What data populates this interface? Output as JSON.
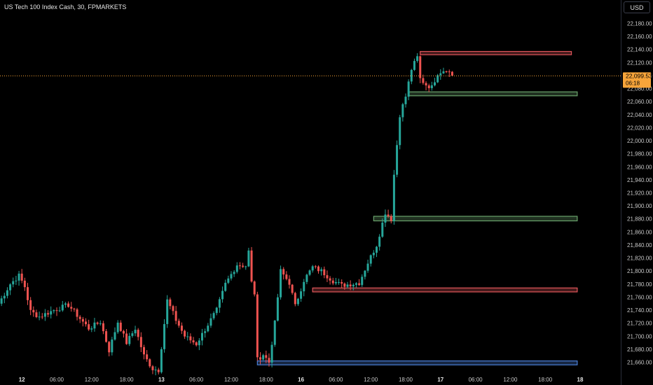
{
  "header": {
    "title": "US Tech 100 Index Cash, 30, FPMARKETS",
    "currency": "USD"
  },
  "colors": {
    "up": "#26a69a",
    "down": "#ef5350",
    "price_line": "#f7a43a",
    "zone_green": "#6aa36c",
    "zone_red": "#e0565b",
    "zone_blue": "#4a7fd6",
    "background": "#000000"
  },
  "price_label": {
    "price": "22,099.53",
    "countdown": "06:18"
  },
  "chart_data": {
    "type": "candlestick",
    "title": "US Tech 100 Index Cash, 30, FPMARKETS",
    "ylim": [
      21640,
      22200
    ],
    "current_price": 22099.53,
    "y_ticks": [
      "22,180.00",
      "22,160.00",
      "22,140.00",
      "22,120.00",
      "22,100.00",
      "22,080.00",
      "22,060.00",
      "22,040.00",
      "22,020.00",
      "22,000.00",
      "21,980.00",
      "21,960.00",
      "21,940.00",
      "21,920.00",
      "21,900.00",
      "21,880.00",
      "21,860.00",
      "21,840.00",
      "21,820.00",
      "21,800.00",
      "21,780.00",
      "21,760.00",
      "21,740.00",
      "21,720.00",
      "21,700.00",
      "21,680.00",
      "21,660.00"
    ],
    "x_ticks": [
      {
        "label": "12",
        "i": 8,
        "bold": true
      },
      {
        "label": "06:00",
        "i": 20
      },
      {
        "label": "12:00",
        "i": 32
      },
      {
        "label": "18:00",
        "i": 44
      },
      {
        "label": "13",
        "i": 56,
        "bold": true
      },
      {
        "label": "06:00",
        "i": 68
      },
      {
        "label": "12:00",
        "i": 80
      },
      {
        "label": "18:00",
        "i": 92
      },
      {
        "label": "16",
        "i": 104,
        "bold": true
      },
      {
        "label": "06:00",
        "i": 116
      },
      {
        "label": "12:00",
        "i": 128
      },
      {
        "label": "18:00",
        "i": 140
      },
      {
        "label": "17",
        "i": 152,
        "bold": true
      },
      {
        "label": "06:00",
        "i": 164
      },
      {
        "label": "12:00",
        "i": 176
      },
      {
        "label": "18:00",
        "i": 188
      },
      {
        "label": "18",
        "i": 200,
        "bold": true
      }
    ],
    "anchors": [
      [
        0,
        21750
      ],
      [
        4,
        21780
      ],
      [
        7,
        21793
      ],
      [
        9,
        21776
      ],
      [
        11,
        21738
      ],
      [
        14,
        21730
      ],
      [
        19,
        21740
      ],
      [
        24,
        21748
      ],
      [
        28,
        21727
      ],
      [
        31,
        21712
      ],
      [
        35,
        21722
      ],
      [
        38,
        21678
      ],
      [
        41,
        21722
      ],
      [
        44,
        21690
      ],
      [
        47,
        21712
      ],
      [
        50,
        21670
      ],
      [
        53,
        21650
      ],
      [
        55,
        21648
      ],
      [
        58,
        21755
      ],
      [
        61,
        21725
      ],
      [
        64,
        21700
      ],
      [
        68,
        21688
      ],
      [
        72,
        21718
      ],
      [
        75,
        21740
      ],
      [
        78,
        21780
      ],
      [
        82,
        21810
      ],
      [
        85,
        21808
      ],
      [
        86,
        21830
      ],
      [
        87,
        21782
      ],
      [
        88,
        21766
      ],
      [
        89,
        21664
      ],
      [
        91,
        21672
      ],
      [
        93,
        21660
      ],
      [
        95,
        21720
      ],
      [
        97,
        21800
      ],
      [
        100,
        21782
      ],
      [
        102,
        21746
      ],
      [
        105,
        21786
      ],
      [
        108,
        21806
      ],
      [
        111,
        21800
      ],
      [
        115,
        21785
      ],
      [
        118,
        21778
      ],
      [
        121,
        21780
      ],
      [
        124,
        21782
      ],
      [
        127,
        21813
      ],
      [
        130,
        21840
      ],
      [
        133,
        21890
      ],
      [
        135,
        21880
      ],
      [
        136,
        21948
      ],
      [
        138,
        22040
      ],
      [
        140,
        22068
      ],
      [
        142,
        22110
      ],
      [
        144,
        22128
      ],
      [
        145,
        22095
      ],
      [
        147,
        22086
      ],
      [
        149,
        22082
      ],
      [
        151,
        22104
      ],
      [
        154,
        22110
      ],
      [
        156,
        22100
      ]
    ],
    "zones": [
      {
        "color": "red",
        "y1": 22137,
        "y2": 22132,
        "i1": 145,
        "i2": 197
      },
      {
        "color": "green",
        "y1": 22075,
        "y2": 22069,
        "i1": 141,
        "i2": 199
      },
      {
        "color": "green",
        "y1": 21884,
        "y2": 21877,
        "i1": 129,
        "i2": 199
      },
      {
        "color": "red",
        "y1": 21774,
        "y2": 21768,
        "i1": 108,
        "i2": 199
      },
      {
        "color": "blue",
        "y1": 21662,
        "y2": 21656,
        "i1": 89,
        "i2": 199
      }
    ]
  }
}
